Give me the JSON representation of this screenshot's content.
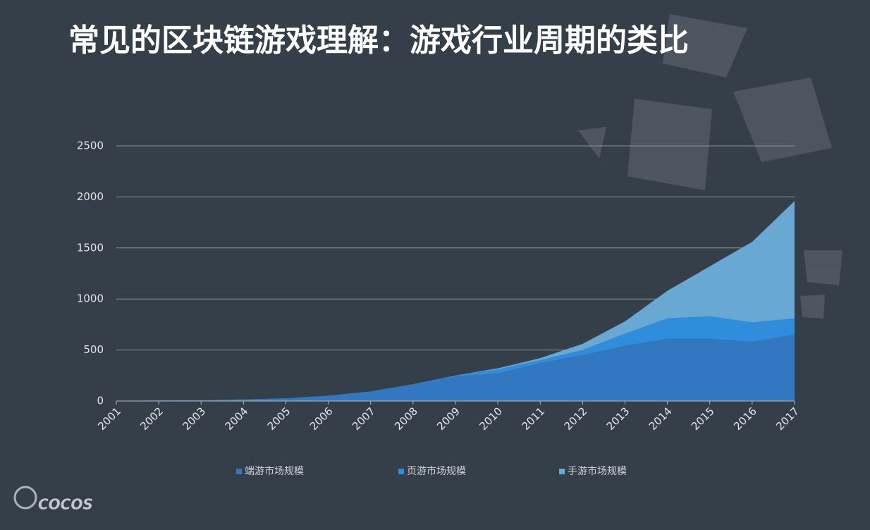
{
  "chart_data": {
    "type": "stacked_area",
    "title": "常见的区块链游戏理解：游戏行业周期的类比",
    "categories": [
      "2001",
      "2002",
      "2003",
      "2004",
      "2005",
      "2006",
      "2007",
      "2008",
      "2009",
      "2010",
      "2011",
      "2012",
      "2013",
      "2014",
      "2015",
      "2016",
      "2017"
    ],
    "series": [
      {
        "name": "端游市场规模",
        "color": "#3377c0",
        "values": [
          3,
          6,
          8,
          15,
          25,
          50,
          90,
          160,
          240,
          270,
          370,
          450,
          540,
          610,
          610,
          580,
          650
        ]
      },
      {
        "name": "页游市场规模",
        "color": "#2f8ddc",
        "values": [
          0,
          0,
          0,
          1,
          2,
          3,
          4,
          5,
          10,
          40,
          30,
          50,
          120,
          200,
          220,
          190,
          160
        ]
      },
      {
        "name": "手游市场规模",
        "color": "#6aa8d4",
        "values": [
          0,
          0,
          0,
          0,
          0,
          0,
          0,
          0,
          0,
          10,
          20,
          60,
          120,
          270,
          490,
          790,
          1150
        ]
      }
    ],
    "ylim": [
      0,
      2500
    ],
    "yticks": [
      0,
      500,
      1000,
      1500,
      2000,
      2500
    ],
    "grid": true,
    "legend": "bottom"
  },
  "logo": "COCOS"
}
